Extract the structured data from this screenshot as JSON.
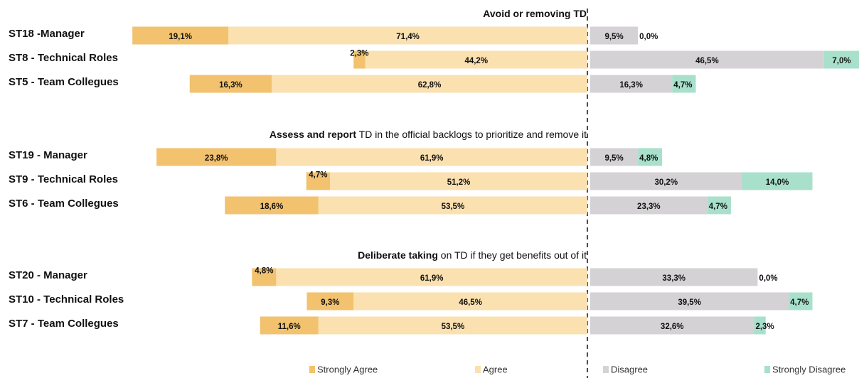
{
  "chart_data": {
    "type": "diverging_bar",
    "series": [
      {
        "name": "Strongly Agree",
        "color": "#f2c26e",
        "side": "left",
        "values": [
          [
            19.1,
            2.3,
            16.3
          ],
          [
            23.8,
            4.7,
            18.6
          ],
          [
            4.8,
            9.3,
            11.6
          ]
        ],
        "value_labels": [
          [
            "19,1%",
            "2,3%",
            "16,3%"
          ],
          [
            "23,8%",
            "4,7%",
            "18,6%"
          ],
          [
            "4,8%",
            "9,3%",
            "11,6%"
          ]
        ]
      },
      {
        "name": "Agree",
        "color": "#fbe0b0",
        "side": "left",
        "values": [
          [
            71.4,
            44.2,
            62.8
          ],
          [
            61.9,
            51.2,
            53.5
          ],
          [
            61.9,
            46.5,
            53.5
          ]
        ],
        "value_labels": [
          [
            "71,4%",
            "44,2%",
            "62,8%"
          ],
          [
            "61,9%",
            "51,2%",
            "53,5%"
          ],
          [
            "61,9%",
            "46,5%",
            "53,5%"
          ]
        ]
      },
      {
        "name": "Disagree",
        "color": "#d4d2d4",
        "side": "right",
        "values": [
          [
            9.5,
            46.5,
            16.3
          ],
          [
            9.5,
            30.2,
            23.3
          ],
          [
            33.3,
            39.5,
            32.6
          ]
        ],
        "value_labels": [
          [
            "9,5%",
            "46,5%",
            "16,3%"
          ],
          [
            "9,5%",
            "30,2%",
            "23,3%"
          ],
          [
            "33,3%",
            "39,5%",
            "32,6%"
          ]
        ]
      },
      {
        "name": "Strongly Disagree",
        "color": "#a8e0cc",
        "side": "right",
        "values": [
          [
            0.0,
            7.0,
            4.7
          ],
          [
            4.8,
            14.0,
            4.7
          ],
          [
            0.0,
            4.7,
            2.3
          ]
        ],
        "value_labels": [
          [
            "0,0%",
            "7,0%",
            "4,7%"
          ],
          [
            "4,8%",
            "14,0%",
            "4,7%"
          ],
          [
            "0,0%",
            "4,7%",
            "2,3%"
          ]
        ]
      }
    ],
    "groups": [
      {
        "title": {
          "bold": "Avoid or removing TD"
        },
        "categories": [
          "ST18 -Manager",
          "ST8 - Technical Roles",
          "ST5 - Team Collegues"
        ]
      },
      {
        "title": {
          "bold": "Assess and report",
          "text": " TD in the official backlogs to prioritize and remove it"
        },
        "categories": [
          "ST19 - Manager",
          "ST9 - Technical Roles",
          "ST6 - Team Collegues"
        ]
      },
      {
        "title": {
          "bold": "Deliberate taking",
          "text": " on TD if they get benefits out of it"
        },
        "categories": [
          "ST20 - Manager",
          "ST10 - Technical Roles",
          "ST7 - Team Collegues"
        ]
      }
    ]
  }
}
